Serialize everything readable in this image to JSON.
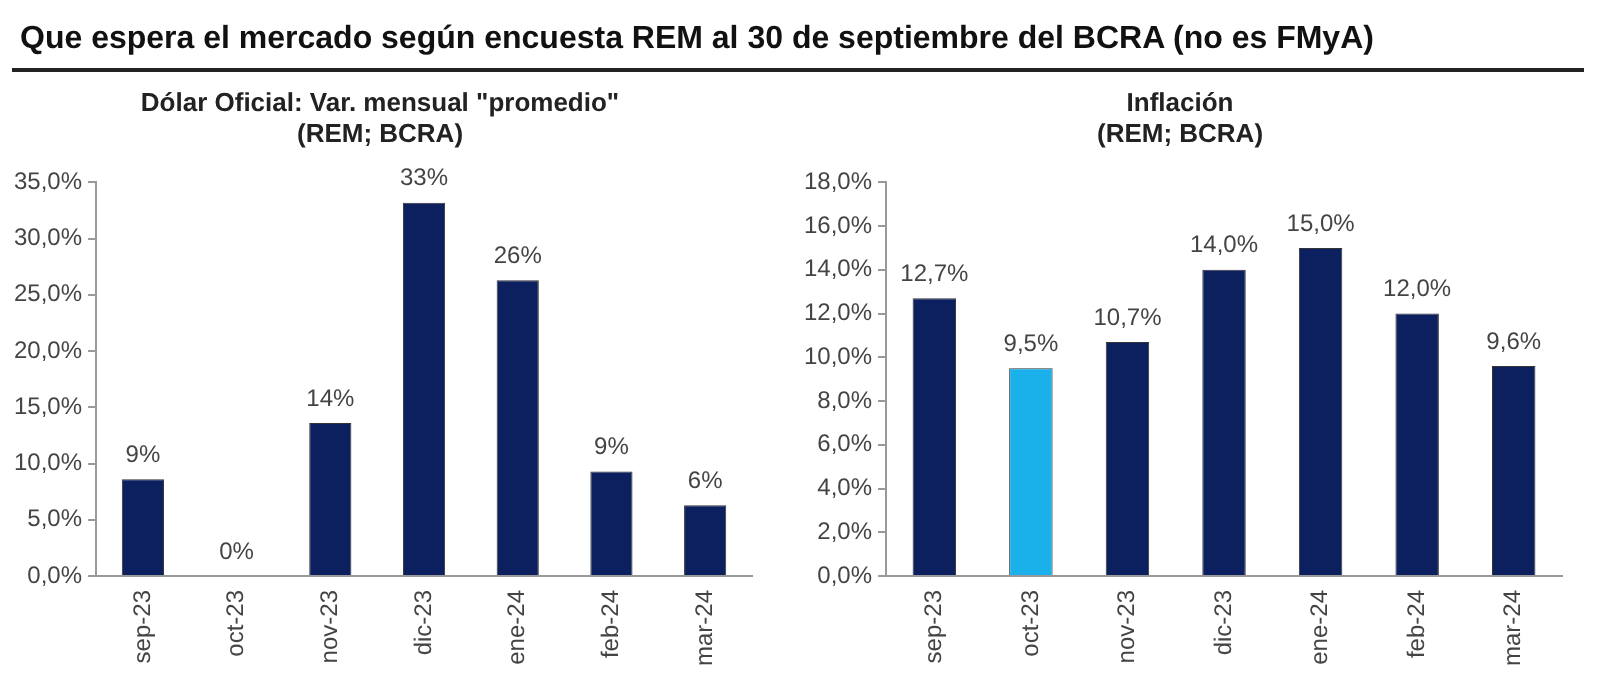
{
  "chart_data": [
    {
      "type": "bar",
      "title": "Que espera el mercado según encuesta REM al 30 de septiembre del BCRA (no es FMyA)",
      "subtitle": "Dólar Oficial: Var. mensual \"promedio\"\n(REM; BCRA)",
      "categories": [
        "sep-23",
        "oct-23",
        "nov-23",
        "dic-23",
        "ene-24",
        "feb-24",
        "mar-24"
      ],
      "values": [
        8.6,
        0,
        13.6,
        33.2,
        26.3,
        9.3,
        6.3
      ],
      "value_labels": [
        "9%",
        "0%",
        "14%",
        "33%",
        "26%",
        "9%",
        "6%"
      ],
      "color": "#0c1f5e",
      "ylim": [
        0,
        35
      ],
      "yticks": [
        {
          "value": 0,
          "label": "0,0%"
        },
        {
          "value": 5,
          "label": "5,0%"
        },
        {
          "value": 10,
          "label": "10,0%"
        },
        {
          "value": 15,
          "label": "15,0%"
        },
        {
          "value": 20,
          "label": "20,0%"
        },
        {
          "value": 25,
          "label": "25,0%"
        },
        {
          "value": 30,
          "label": "30,0%"
        },
        {
          "value": 35,
          "label": "35,0%"
        }
      ],
      "grid": false,
      "legend": false
    },
    {
      "type": "bar",
      "subtitle": "Inflación\n(REM; BCRA)",
      "categories": [
        "sep-23",
        "oct-23",
        "nov-23",
        "dic-23",
        "ene-24",
        "feb-24",
        "mar-24"
      ],
      "values": [
        12.7,
        9.5,
        10.7,
        14.0,
        15.0,
        12.0,
        9.6
      ],
      "value_labels": [
        "12,7%",
        "9,5%",
        "10,7%",
        "14,0%",
        "15,0%",
        "12,0%",
        "9,6%"
      ],
      "colors": [
        "#0c1f5e",
        "#1ab0ea",
        "#0c1f5e",
        "#0c1f5e",
        "#0c1f5e",
        "#0c1f5e",
        "#0c1f5e"
      ],
      "ylim": [
        0,
        18
      ],
      "yticks": [
        {
          "value": 0,
          "label": "0,0%"
        },
        {
          "value": 2,
          "label": "2,0%"
        },
        {
          "value": 4,
          "label": "4,0%"
        },
        {
          "value": 6,
          "label": "6,0%"
        },
        {
          "value": 8,
          "label": "8,0%"
        },
        {
          "value": 10,
          "label": "10,0%"
        },
        {
          "value": 12,
          "label": "12,0%"
        },
        {
          "value": 14,
          "label": "14,0%"
        },
        {
          "value": 16,
          "label": "16,0%"
        },
        {
          "value": 18,
          "label": "18,0%"
        }
      ],
      "grid": false,
      "legend": false
    }
  ]
}
